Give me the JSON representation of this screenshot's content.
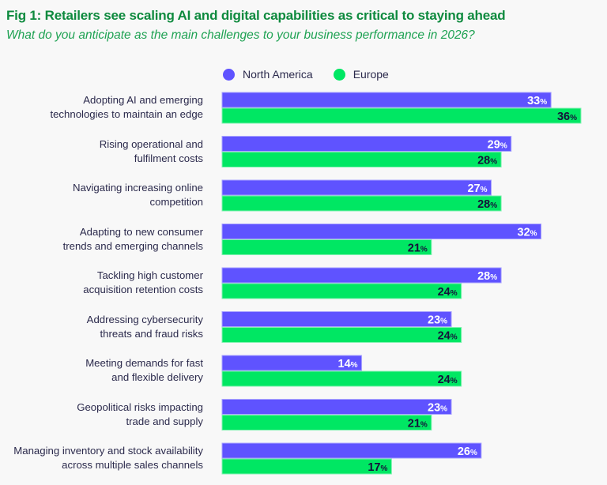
{
  "header": {
    "title": "Fig 1: Retailers see scaling AI and digital capabilities as critical to staying ahead",
    "subtitle": "What do you anticipate as the main challenges to your business performance in 2026?"
  },
  "colors": {
    "north_america": "#5f53ff",
    "europe": "#00e763",
    "title": "#0e8a3e",
    "label_text": "#2b2a4c",
    "na_value_text": "#ffffff",
    "eu_value_text": "#15123a"
  },
  "chart_data": {
    "type": "bar",
    "orientation": "horizontal",
    "title": "Fig 1: Retailers see scaling AI and digital capabilities as critical to staying ahead",
    "subtitle": "What do you anticipate as the main challenges to your business performance in 2026?",
    "xlabel": "",
    "ylabel": "",
    "unit": "%",
    "xlim": [
      0,
      36
    ],
    "grid": false,
    "legend_position": "top",
    "categories": [
      [
        "Adopting AI and emerging",
        "technologies to maintain an edge"
      ],
      [
        "Rising operational and",
        "fulfilment costs"
      ],
      [
        "Navigating increasing online",
        "competition"
      ],
      [
        "Adapting to new consumer",
        "trends and emerging channels"
      ],
      [
        "Tackling high customer",
        "acquisition retention costs"
      ],
      [
        "Addressing cybersecurity",
        "threats and fraud risks"
      ],
      [
        "Meeting demands for fast",
        "and flexible delivery"
      ],
      [
        "Geopolitical risks impacting",
        "trade and supply"
      ],
      [
        "Managing inventory and stock availability",
        "across multiple sales channels"
      ]
    ],
    "series": [
      {
        "name": "North America",
        "values": [
          33,
          29,
          27,
          32,
          28,
          23,
          14,
          23,
          26
        ]
      },
      {
        "name": "Europe",
        "values": [
          36,
          28,
          28,
          21,
          24,
          24,
          24,
          21,
          17
        ]
      }
    ]
  }
}
